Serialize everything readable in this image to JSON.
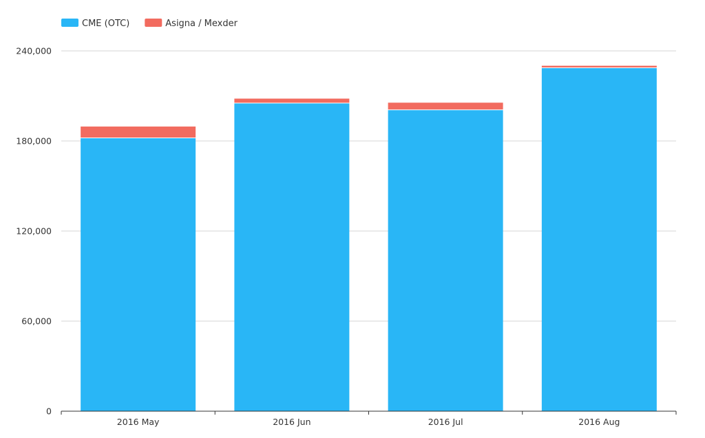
{
  "chart_data": {
    "type": "bar",
    "stacked": true,
    "categories": [
      "2016 May",
      "2016 Jun",
      "2016 Jul",
      "2016 Aug"
    ],
    "series": [
      {
        "name": "CME (OTC)",
        "color": "#29b6f6",
        "values": [
          181800,
          205000,
          200500,
          228500
        ]
      },
      {
        "name": "Asigna / Mexder",
        "color": "#f26b5f",
        "values": [
          7800,
          3200,
          5000,
          1600
        ]
      }
    ],
    "ylim": [
      0,
      240000
    ],
    "yticks": [
      0,
      60000,
      120000,
      180000,
      240000
    ],
    "ytick_labels": [
      "0",
      "60,000",
      "120,000",
      "180,000",
      "240,000"
    ],
    "grid": true,
    "legend_position": "top-left",
    "title": "",
    "xlabel": "",
    "ylabel": ""
  }
}
